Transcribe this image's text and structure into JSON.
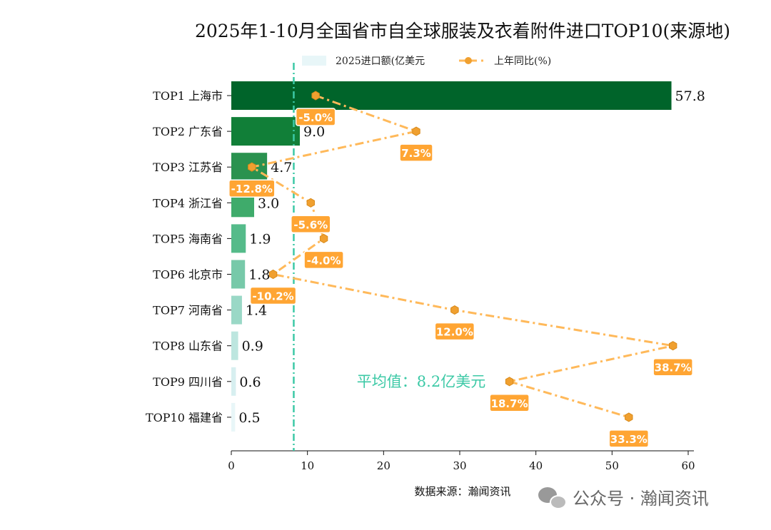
{
  "chart_data": {
    "type": "bar",
    "orientation": "horizontal",
    "title": "2025年1-10月全国省市自全球服装及衣着附件进口TOP10(来源地)",
    "categories": [
      "TOP1 上海市",
      "TOP2 广东省",
      "TOP3 江苏省",
      "TOP4 浙江省",
      "TOP5 海南省",
      "TOP6 北京市",
      "TOP7 河南省",
      "TOP8 山东省",
      "TOP9 四川省",
      "TOP10 福建省"
    ],
    "series": [
      {
        "name": "2025进口额(亿美元",
        "type": "bar",
        "values": [
          57.8,
          9.0,
          4.7,
          3.0,
          1.9,
          1.8,
          1.4,
          0.9,
          0.6,
          0.5
        ],
        "value_labels": [
          "57.8",
          "9.0",
          "4.7",
          "3.0",
          "1.9",
          "1.8",
          "1.4",
          "0.9",
          "0.6",
          "0.5"
        ],
        "colors": [
          "#00642a",
          "#117f38",
          "#2a924f",
          "#3fab6b",
          "#55bb8a",
          "#77c9a9",
          "#9ad8c6",
          "#bde6df",
          "#d7eff0",
          "#e8f6f8"
        ]
      },
      {
        "name": "上年同比(%)",
        "type": "line",
        "values": [
          -5.0,
          7.3,
          -12.8,
          -5.6,
          -4.0,
          -10.2,
          12.0,
          38.7,
          18.7,
          33.3
        ],
        "value_labels": [
          "-5.0%",
          "7.3%",
          "-12.8%",
          "-5.6%",
          "-4.0%",
          "-10.2%",
          "12.0%",
          "38.7%",
          "18.7%",
          "33.3%"
        ],
        "color": "#ffb95a",
        "marker_color": "#f0a030",
        "label_box_color": "#ffa533",
        "secondary_axis_hidden": true
      }
    ],
    "xlim": [
      0,
      60
    ],
    "xticks": [
      "0",
      "10",
      "20",
      "30",
      "40",
      "50",
      "60"
    ],
    "grid": false,
    "legend_placement": "top-center",
    "average": {
      "value": 8.2,
      "label": "平均值：8.2亿美元",
      "color": "#3cc9a6"
    },
    "source": "数据来源：瀚闻资讯"
  },
  "watermark": "公众号 · 瀚闻资讯"
}
